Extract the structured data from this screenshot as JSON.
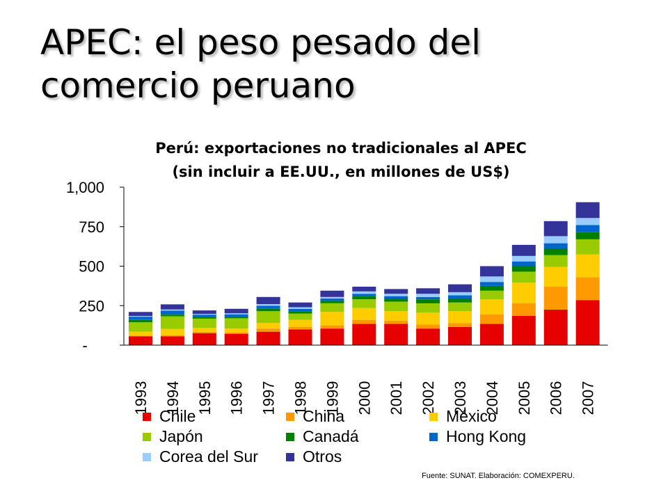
{
  "slide": {
    "title": "APEC: el peso pesado del comercio peruano",
    "source": "Fuente: SUNAT.  Elaboración: COMEXPERU."
  },
  "chart_data": {
    "type": "bar",
    "stacked": true,
    "title": "Perú: exportaciones no tradicionales al APEC",
    "subtitle": "(sin incluir a EE.UU., en millones de US$)",
    "categories": [
      "1993",
      "1994",
      "1995",
      "1996",
      "1997",
      "1998",
      "1999",
      "2000",
      "2001",
      "2002",
      "2003",
      "2004",
      "2005",
      "2006",
      "2007"
    ],
    "ylim": [
      0,
      1000
    ],
    "yticks": [
      0,
      250,
      500,
      750,
      1000
    ],
    "ytick_labels": [
      "-",
      "250",
      "500",
      "750",
      "1,000"
    ],
    "legend_position": "bottom",
    "series": [
      {
        "name": "Chile",
        "color": "#e60000",
        "values": [
          55,
          55,
          75,
          72,
          85,
          100,
          105,
          135,
          135,
          105,
          115,
          135,
          185,
          225,
          285
        ]
      },
      {
        "name": "China",
        "color": "#ff9900",
        "values": [
          5,
          8,
          10,
          8,
          20,
          15,
          20,
          25,
          20,
          25,
          25,
          60,
          80,
          145,
          145
        ]
      },
      {
        "name": "México",
        "color": "#ffcc00",
        "values": [
          25,
          40,
          25,
          25,
          35,
          45,
          85,
          75,
          60,
          75,
          75,
          95,
          130,
          125,
          145
        ]
      },
      {
        "name": "Japón",
        "color": "#99cc00",
        "values": [
          60,
          80,
          58,
          65,
          75,
          40,
          55,
          55,
          60,
          60,
          55,
          55,
          70,
          75,
          95
        ]
      },
      {
        "name": "Canadá",
        "color": "#008000",
        "values": [
          15,
          10,
          10,
          10,
          15,
          15,
          15,
          20,
          20,
          25,
          25,
          30,
          35,
          40,
          45
        ]
      },
      {
        "name": "Hong Kong",
        "color": "#0066cc",
        "values": [
          20,
          25,
          15,
          15,
          20,
          15,
          15,
          15,
          15,
          15,
          20,
          25,
          30,
          35,
          45
        ]
      },
      {
        "name": "Corea del Sur",
        "color": "#99ccff",
        "values": [
          5,
          8,
          5,
          7,
          10,
          10,
          10,
          15,
          15,
          20,
          20,
          35,
          35,
          45,
          45
        ]
      },
      {
        "name": "Otros",
        "color": "#333399",
        "values": [
          25,
          32,
          22,
          28,
          45,
          30,
          40,
          30,
          30,
          35,
          50,
          65,
          70,
          95,
          100
        ]
      }
    ]
  }
}
